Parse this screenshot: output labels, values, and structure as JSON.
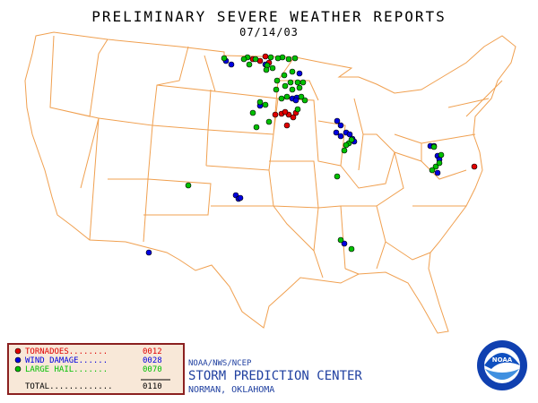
{
  "header": {
    "title": "PRELIMINARY SEVERE WEATHER REPORTS",
    "date": "07/14/03"
  },
  "legend": {
    "items": [
      {
        "label": "TORNADOES........",
        "count": "0012",
        "color": "#e00000"
      },
      {
        "label": "WIND DAMAGE......",
        "count": "0028",
        "color": "#0000e0"
      },
      {
        "label": "LARGE HAIL.......",
        "count": "0070",
        "color": "#00c000"
      }
    ],
    "total": {
      "label": "TOTAL.............",
      "count": "0110"
    }
  },
  "footer": {
    "agency": "NOAA/NWS/NCEP",
    "center": "STORM PREDICTION CENTER",
    "location": "NORMAN, OKLAHOMA"
  },
  "logo": {
    "text": "NOAA"
  }
}
